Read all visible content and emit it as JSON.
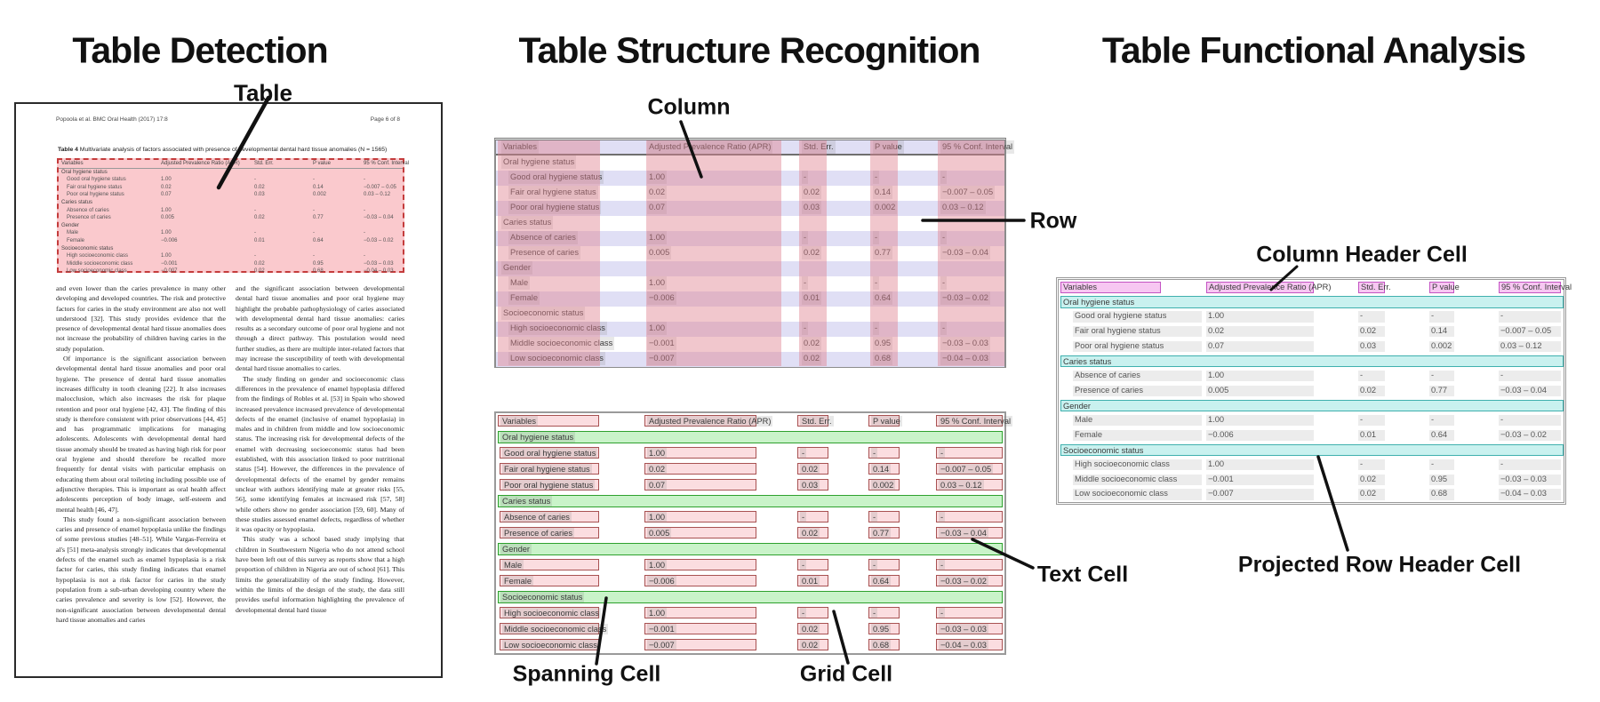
{
  "panels": {
    "detection": {
      "title": "Table Detection",
      "callout_table": "Table",
      "document": {
        "header_left": "Popoola et al. BMC Oral Health  (2017) 17:8",
        "header_right": "Page 6 of 8",
        "caption_label": "Table 4",
        "caption_text": " Multivariate analysis of factors associated with presence of developmental dental hard tissue anomalies (N = 1565)",
        "body_left": [
          "and even lower than the caries prevalence in many other developing and developed countries. The risk and protective factors for caries in the study environment are also not well understood [32]. This study provides evidence that the presence of developmental dental hard tissue anomalies does not increase the probability of children having caries in the study population.",
          "Of importance is the significant association between developmental dental hard tissue anomalies and poor oral hygiene. The presence of dental hard tissue anomalies increases difficulty in tooth cleaning [22]. It also increases malocclusion, which also increases the risk for plaque retention and poor oral hygiene [42, 43]. The finding of this study is therefore consistent with prior observations [44, 45] and has programmatic implications for managing adolescents. Adolescents with developmental dental hard tissue anomaly should be treated as having high risk for poor oral hygiene and should therefore be recalled more frequently for dental visits with particular emphasis on educating them about oral toileting including possible use of adjunctive therapies. This is important as oral health affect adolescents perception of body image, self-esteem and mental health [46, 47].",
          "This study found a non-significant association between caries and presence of enamel hypoplasia unlike the findings of some previous studies [48–51]. While Vargas-Ferreira et al's [51] meta-analysis strongly indicates that developmental defects of the enamel such as enamel hypoplasia is a risk factor for caries, this study finding indicates that enamel hypoplasia is not a risk factor for caries in the study population from a sub-urban developing country where the caries prevalence and severity is low [52]. However, the non-significant association between developmental dental hard tissue anomalies and caries"
        ],
        "body_right": [
          "and the significant association between developmental dental hard tissue anomalies and poor oral hygiene may highlight the probable pathophysiology of caries associated with developmental dental hard tissue anomalies: caries results as a secondary outcome of poor oral hygiene and not through a direct pathway. This postulation would need further studies, as there are multiple inter-related factors that may increase the susceptibility of teeth with developmental dental hard tissue anomalies to caries.",
          "The study finding on gender and socioeconomic class differences in the prevalence of enamel hypoplasia differed from the findings of Robles et al. [53] in Spain who showed increased prevalence increased prevalence of developmental defects of the enamel (inclusive of enamel hypoplasia) in males and in children from middle and low socioeconomic status. The increasing risk for developmental defects of the enamel with decreasing socioeconomic status had been established, with this association linked to poor nutritional status [54]. However, the differences in the prevalence of developmental defects of the enamel by gender remains unclear with authors identifying male at greater risks [55, 56], some identifying females at increased risk [57, 58] while others show no gender association [59, 60]. Many of these studies assessed enamel defects, regardless of whether it was opacity or hypoplasia.",
          "This study was a school based study implying that children in Southwestern Nigeria who do not attend school have been left out of this survey as reports show that a high proportion of children in Nigeria are out of school [61]. This limits the generalizability of the study finding. However, within the limits of the design of the study, the data still provides useful information highlighting the prevalence of developmental dental hard tissue"
        ]
      }
    },
    "structure": {
      "title": "Table Structure Recognition",
      "callout_column": "Column",
      "callout_row": "Row",
      "callout_spanning": "Spanning Cell",
      "callout_grid": "Grid Cell",
      "callout_text": "Text Cell"
    },
    "functional": {
      "title": "Table Functional Analysis",
      "callout_column_header": "Column Header Cell",
      "callout_projected_row": "Projected Row Header Cell"
    }
  },
  "table": {
    "columns": [
      "Variables",
      "Adjusted Prevalence Ratio (APR)",
      "Std. Err.",
      "P value",
      "95 % Conf. Interval"
    ],
    "rows": [
      {
        "type": "section",
        "label": "Oral hygiene status"
      },
      {
        "type": "data",
        "label": "Good oral hygiene status",
        "values": [
          "1.00",
          "-",
          "-",
          "-"
        ]
      },
      {
        "type": "data",
        "label": "Fair oral hygiene status",
        "values": [
          "0.02",
          "0.02",
          "0.14",
          "−0.007 – 0.05"
        ]
      },
      {
        "type": "data",
        "label": "Poor oral hygiene status",
        "values": [
          "0.07",
          "0.03",
          "0.002",
          "0.03 – 0.12"
        ]
      },
      {
        "type": "section",
        "label": "Caries status"
      },
      {
        "type": "data",
        "label": "Absence of caries",
        "values": [
          "1.00",
          "-",
          "-",
          "-"
        ]
      },
      {
        "type": "data",
        "label": "Presence of caries",
        "values": [
          "0.005",
          "0.02",
          "0.77",
          "−0.03 – 0.04"
        ]
      },
      {
        "type": "section",
        "label": "Gender"
      },
      {
        "type": "data",
        "label": "Male",
        "values": [
          "1.00",
          "-",
          "-",
          "-"
        ]
      },
      {
        "type": "data",
        "label": "Female",
        "values": [
          "−0.006",
          "0.01",
          "0.64",
          "−0.03 – 0.02"
        ]
      },
      {
        "type": "section",
        "label": "Socioeconomic status"
      },
      {
        "type": "data",
        "label": "High socioeconomic class",
        "values": [
          "1.00",
          "-",
          "-",
          "-"
        ]
      },
      {
        "type": "data",
        "label": "Middle socioeconomic class",
        "values": [
          "−0.001",
          "0.02",
          "0.95",
          "−0.03 – 0.03"
        ]
      },
      {
        "type": "data",
        "label": "Low socioeconomic class",
        "values": [
          "−0.007",
          "0.02",
          "0.68",
          "−0.04 – 0.03"
        ]
      }
    ]
  },
  "colors": {
    "detection_fill": "rgba(246,148,156,0.50)",
    "detection_border": "#c43c3c",
    "row_stripe": "#e0dff5",
    "column_stripe": "rgba(225,130,145,0.45)",
    "cell_fill": "#fbdde0",
    "cell_border": "#a85252",
    "spanning_fill": "#c9f3c9",
    "spanning_border": "#2ea12e",
    "header_cell_fill": "#f7c7f2",
    "header_cell_border": "#c353c3",
    "projected_fill": "#c9f1ef",
    "projected_border": "#3fb0ae",
    "grid_cell_fill": "#ececec"
  }
}
